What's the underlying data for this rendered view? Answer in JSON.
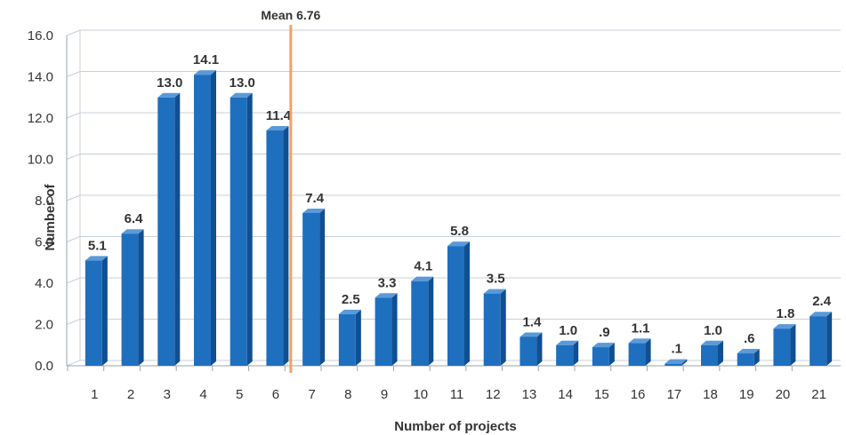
{
  "chart_data": {
    "type": "bar",
    "categories": [
      "1",
      "2",
      "3",
      "4",
      "5",
      "6",
      "7",
      "8",
      "9",
      "10",
      "11",
      "12",
      "13",
      "14",
      "15",
      "16",
      "17",
      "18",
      "19",
      "20",
      "21"
    ],
    "values": [
      5.1,
      6.4,
      13.0,
      14.1,
      13.0,
      11.4,
      7.4,
      2.5,
      3.3,
      4.1,
      5.8,
      3.5,
      1.4,
      1.0,
      0.9,
      1.1,
      0.1,
      1.0,
      0.6,
      1.8,
      2.4
    ],
    "data_labels": [
      "5.1",
      "6.4",
      "13.0",
      "14.1",
      "13.0",
      "11.4",
      "7.4",
      "2.5",
      "3.3",
      "4.1",
      "5.8",
      "3.5",
      "1.4",
      "1.0",
      ".9",
      "1.1",
      ".1",
      "1.0",
      ".6",
      "1.8",
      "2.4"
    ],
    "y_ticks": [
      "0.0",
      "2.0",
      "4.0",
      "6.0",
      "8.0",
      "10.0",
      "12.0",
      "14.0",
      "16.0"
    ],
    "ylim": [
      0,
      16
    ],
    "title": "",
    "xlabel": "Number of projects",
    "ylabel": "Number of",
    "grid": true,
    "mean": {
      "value": 6.76,
      "label": "Mean 6.76",
      "color": "#f4a064"
    },
    "colors": {
      "bar": "#1f6fbf",
      "bar_dark": "#0f4f92",
      "bar_top": "#5a9ad8",
      "grid": "#c8d0da"
    }
  }
}
